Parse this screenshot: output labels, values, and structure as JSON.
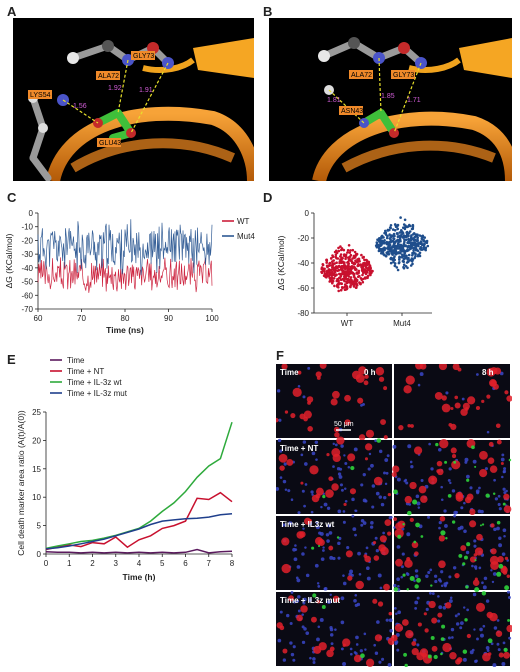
{
  "panels": {
    "a": {
      "letter": "A",
      "labels": [
        "ALA72",
        "GLY73",
        "LYS54",
        "GLU43"
      ],
      "distances": [
        "1.56",
        "1.92",
        "1.91"
      ]
    },
    "b": {
      "letter": "B",
      "labels": [
        "ALA72",
        "GLY73",
        "ASN43"
      ],
      "distances": [
        "1.81",
        "1.85",
        "1.71"
      ]
    },
    "c": {
      "letter": "C"
    },
    "d": {
      "letter": "D"
    },
    "e": {
      "letter": "E"
    },
    "f": {
      "letter": "F",
      "time_labels": [
        "0 h",
        "8 h"
      ],
      "row_labels": [
        "Time",
        "Time + NT",
        "Time + IL3z wt",
        "Time + IL3z mut"
      ],
      "scalebar": "50 μm"
    }
  },
  "chart_data": [
    {
      "type": "line",
      "panel": "C",
      "xlabel": "Time (ns)",
      "ylabel": "ΔG (KCal/mol)",
      "xlim": [
        60,
        100
      ],
      "ylim": [
        -70,
        0
      ],
      "xticks": [
        60,
        70,
        80,
        90,
        100
      ],
      "yticks": [
        0,
        -10,
        -20,
        -30,
        -40,
        -50,
        -60,
        -70
      ],
      "legend_position": "right",
      "series": [
        {
          "name": "WT",
          "color": "#c8102e",
          "mean": -45,
          "amp": 10,
          "seed": 3
        },
        {
          "name": "Mut4",
          "color": "#1f4e8c",
          "mean": -25,
          "amp": 15,
          "seed": 11
        }
      ]
    },
    {
      "type": "scatter",
      "panel": "D",
      "ylabel": "ΔG (KCal/mol)",
      "categories": [
        "WT",
        "Mut4"
      ],
      "ylim": [
        -80,
        0
      ],
      "yticks": [
        0,
        -20,
        -40,
        -60,
        -80
      ],
      "series": [
        {
          "name": "WT",
          "color": "#c8102e",
          "center": -45,
          "min": -68,
          "max": -12
        },
        {
          "name": "Mut4",
          "color": "#1f4e8c",
          "center": -25,
          "min": -56,
          "max": 2
        }
      ]
    },
    {
      "type": "line",
      "panel": "E",
      "xlabel": "Time (h)",
      "ylabel": "Cell death marker area ratio (A(t)/A(0))",
      "xlim": [
        0,
        8
      ],
      "ylim": [
        0,
        25
      ],
      "xticks": [
        0,
        1,
        2,
        3,
        4,
        5,
        6,
        7,
        8
      ],
      "yticks": [
        0,
        5,
        10,
        15,
        20,
        25
      ],
      "legend_position": "top-left",
      "series": [
        {
          "name": "Time",
          "color": "#5b1a5e",
          "x": [
            0,
            0.5,
            1,
            1.5,
            2,
            2.5,
            3,
            3.5,
            4,
            4.5,
            5,
            5.5,
            6,
            6.5,
            7,
            7.5,
            8
          ],
          "y": [
            0.4,
            0.3,
            0.3,
            0.2,
            0.3,
            0.2,
            0.3,
            0.2,
            0.3,
            0.2,
            0.3,
            0.2,
            0.3,
            0.8,
            0.2,
            0.4,
            0.5
          ]
        },
        {
          "name": "Time + NT",
          "color": "#c8102e",
          "x": [
            0,
            0.5,
            1,
            1.5,
            2,
            2.5,
            3,
            3.5,
            4,
            4.5,
            5,
            5.5,
            6,
            6.5,
            7,
            7.5,
            8
          ],
          "y": [
            0.8,
            1.2,
            1.6,
            1.3,
            2.0,
            1.8,
            3.0,
            1.2,
            2.5,
            3.2,
            4.5,
            5.0,
            5.8,
            9.8,
            9.6,
            10.8,
            9.2
          ]
        },
        {
          "name": "Time + IL-3z wt",
          "color": "#2eaa3c",
          "x": [
            0,
            0.5,
            1,
            1.5,
            2,
            2.5,
            3,
            3.5,
            4,
            4.5,
            5,
            5.5,
            6,
            6.5,
            7,
            7.5,
            8
          ],
          "y": [
            1.0,
            1.4,
            1.8,
            2.2,
            2.4,
            2.8,
            3.3,
            3.9,
            4.5,
            5.8,
            7.5,
            9.0,
            11.0,
            13.5,
            15.5,
            16.8,
            23.2
          ]
        },
        {
          "name": "Time + IL-3z mut",
          "color": "#1f3f8c",
          "x": [
            0,
            0.5,
            1,
            1.5,
            2,
            2.5,
            3,
            3.5,
            4,
            4.5,
            5,
            5.5,
            6,
            6.5,
            7,
            7.5,
            8
          ],
          "y": [
            0.9,
            1.1,
            1.4,
            1.8,
            2.2,
            2.6,
            3.2,
            3.8,
            4.4,
            5.2,
            5.8,
            6.0,
            6.2,
            6.3,
            6.5,
            6.9,
            7.1
          ]
        }
      ]
    }
  ]
}
